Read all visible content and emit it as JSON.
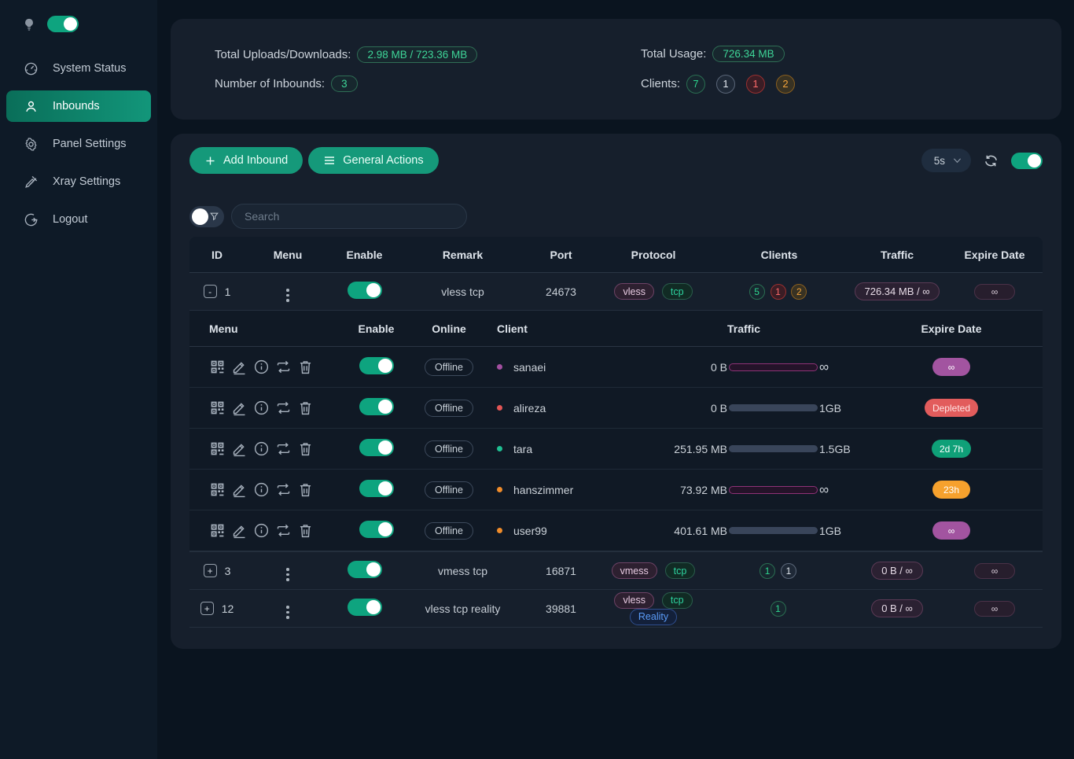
{
  "colors": {
    "page_bg": "#0a141f",
    "sidebar_bg": "#0e1a27",
    "card_bg": "#161f2c",
    "accent_green": "#15997a",
    "toggle_on": "#0ea47f",
    "badge_green": "#3ed598",
    "client_green": "#2ed78f",
    "client_gray": "#e2e8ef",
    "client_red": "#ff6b6b",
    "client_orange": "#f3a43b",
    "protocol_purple": "#e8cbe2",
    "protocol_blue": "#5b9cf8",
    "expire_purple": "#a254a0",
    "expire_red": "#e25c5c",
    "expire_green": "#0fa078",
    "expire_orange": "#f6a12d",
    "bar_purple_border": "#8e3277",
    "bar_green": "#16a085",
    "bar_orange": "#f08c2a"
  },
  "sidebar": {
    "items": [
      {
        "label": "System Status",
        "icon": "dashboard-icon",
        "active": false
      },
      {
        "label": "Inbounds",
        "icon": "user-icon",
        "active": true
      },
      {
        "label": "Panel Settings",
        "icon": "gear-icon",
        "active": false
      },
      {
        "label": "Xray Settings",
        "icon": "tool-icon",
        "active": false
      },
      {
        "label": "Logout",
        "icon": "logout-icon",
        "active": false
      }
    ],
    "theme_toggle_on": true
  },
  "stats": {
    "total_uploads_downloads_label": "Total Uploads/Downloads:",
    "total_uploads_downloads_value": "2.98 MB / 723.36 MB",
    "number_of_inbounds_label": "Number of Inbounds:",
    "number_of_inbounds_value": "3",
    "total_usage_label": "Total Usage:",
    "total_usage_value": "726.34 MB",
    "clients_label": "Clients:",
    "client_counts": [
      {
        "value": "7",
        "color": "green"
      },
      {
        "value": "1",
        "color": "gray"
      },
      {
        "value": "1",
        "color": "red"
      },
      {
        "value": "2",
        "color": "orange"
      }
    ]
  },
  "toolbar": {
    "add_inbound_label": "Add Inbound",
    "general_actions_label": "General Actions",
    "refresh_interval": "5s",
    "auto_refresh_on": true
  },
  "search": {
    "placeholder": "Search"
  },
  "icons": {
    "plus": "+",
    "minus": "-",
    "menu_dots": "⋮",
    "infinity": "∞"
  },
  "table": {
    "headers": [
      "ID",
      "Menu",
      "Enable",
      "Remark",
      "Port",
      "Protocol",
      "Clients",
      "Traffic",
      "Expire Date"
    ],
    "rows": [
      {
        "id": "1",
        "expand_glyph": "-",
        "expanded": true,
        "enabled": true,
        "remark": "vless tcp",
        "port": "24673",
        "protocols": [
          "vless",
          "tcp"
        ],
        "clients": [
          {
            "value": "5",
            "color": "green"
          },
          {
            "value": "1",
            "color": "red"
          },
          {
            "value": "2",
            "color": "orange"
          }
        ],
        "traffic": "726.34 MB / ∞",
        "expire": "∞"
      },
      {
        "id": "3",
        "expand_glyph": "+",
        "expanded": false,
        "enabled": true,
        "remark": "vmess tcp",
        "port": "16871",
        "protocols": [
          "vmess",
          "tcp"
        ],
        "clients": [
          {
            "value": "1",
            "color": "green"
          },
          {
            "value": "1",
            "color": "gray"
          }
        ],
        "traffic": "0 B / ∞",
        "expire": "∞"
      },
      {
        "id": "12",
        "expand_glyph": "+",
        "expanded": false,
        "enabled": true,
        "remark": "vless tcp reality",
        "port": "39881",
        "protocols": [
          "vless",
          "tcp",
          "Reality"
        ],
        "clients": [
          {
            "value": "1",
            "color": "green"
          }
        ],
        "traffic": "0 B / ∞",
        "expire": "∞"
      }
    ]
  },
  "client_table": {
    "headers": [
      "Menu",
      "Enable",
      "Online",
      "Client",
      "Traffic",
      "Expire Date"
    ],
    "rows": [
      {
        "online": "Offline",
        "name": "sanaei",
        "dot_color": "#a24fa0",
        "enabled": true,
        "traffic_used": "0 B",
        "traffic_limit": "∞",
        "bar_style": "infinite",
        "bar_pct": 0,
        "expire": "∞",
        "expire_style": "purple"
      },
      {
        "online": "Offline",
        "name": "alireza",
        "dot_color": "#e25555",
        "enabled": true,
        "traffic_used": "0 B",
        "traffic_limit": "1GB",
        "bar_style": "normal",
        "bar_pct": 0,
        "expire": "Depleted",
        "expire_style": "red"
      },
      {
        "online": "Offline",
        "name": "tara",
        "dot_color": "#1fbf92",
        "enabled": true,
        "traffic_used": "251.95 MB",
        "traffic_limit": "1.5GB",
        "bar_style": "normal",
        "bar_pct": 16,
        "expire": "2d 7h",
        "expire_style": "green"
      },
      {
        "online": "Offline",
        "name": "hanszimmer",
        "dot_color": "#f08c2a",
        "enabled": true,
        "traffic_used": "73.92 MB",
        "traffic_limit": "∞",
        "bar_style": "infinite",
        "bar_pct": 0,
        "expire": "23h",
        "expire_style": "orange"
      },
      {
        "online": "Offline",
        "name": "user99",
        "dot_color": "#f08c2a",
        "enabled": true,
        "traffic_used": "401.61 MB",
        "traffic_limit": "1GB",
        "bar_style": "normal",
        "bar_pct": 39,
        "expire": "∞",
        "expire_style": "purple"
      }
    ]
  }
}
